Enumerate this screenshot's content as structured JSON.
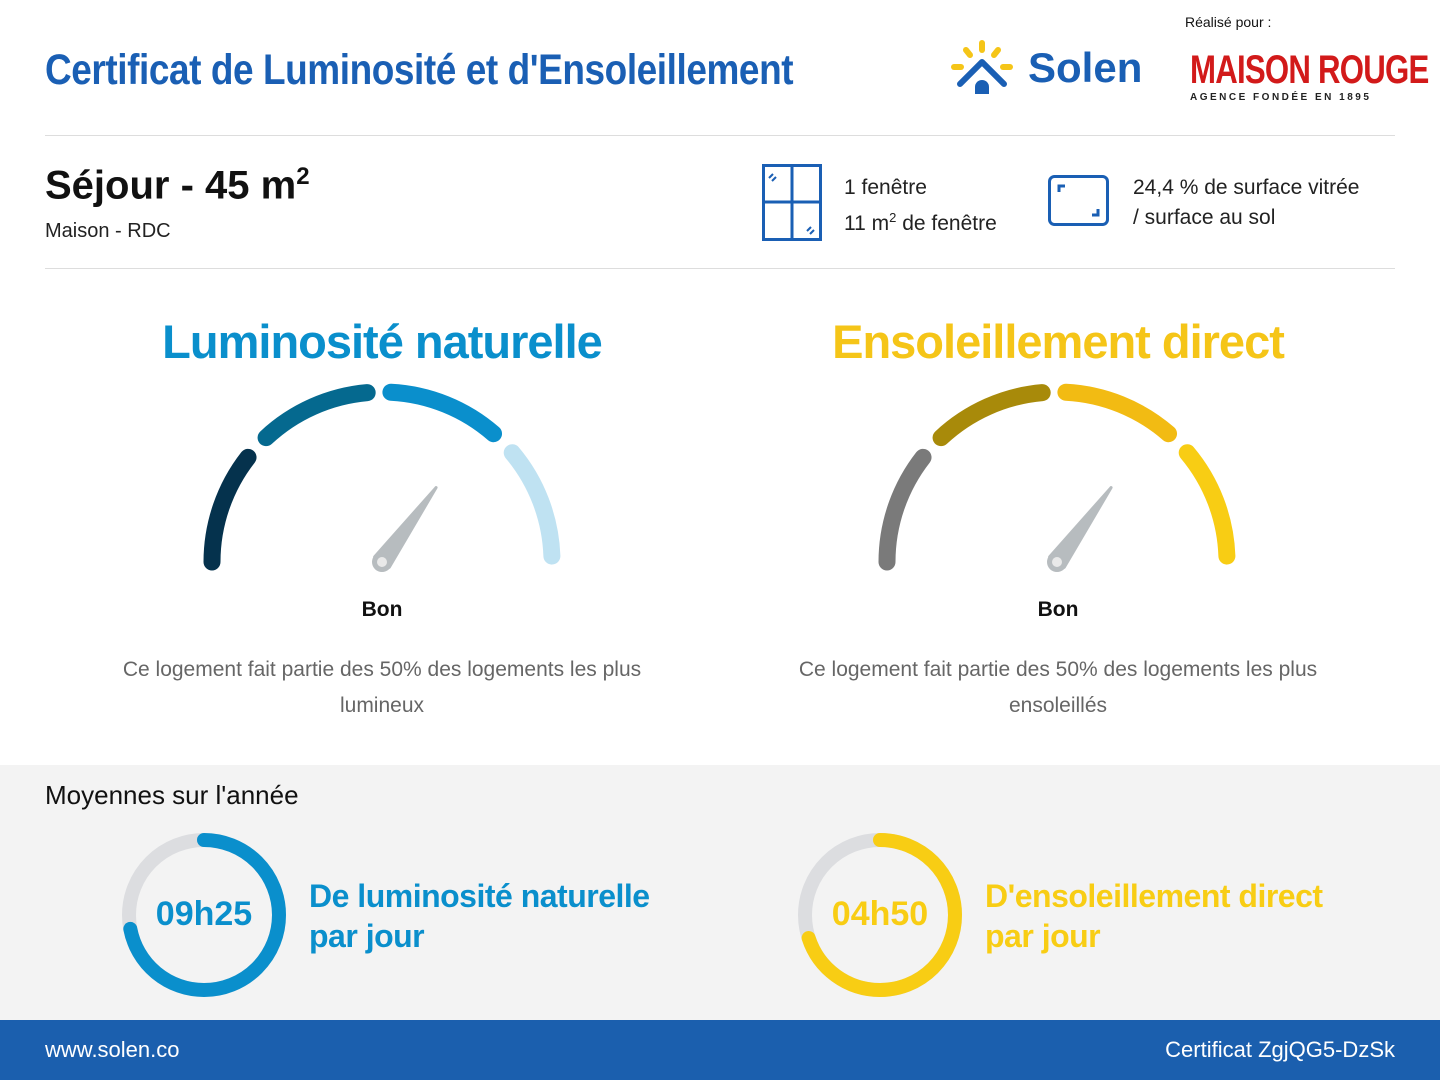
{
  "header": {
    "title": "Certificat de Luminosité et d'Ensoleillement",
    "brand": "Solen",
    "made_for": "Réalisé pour :",
    "client_logo": "MAISON ROUGE",
    "client_tagline": "AGENCE FONDÉE EN 1895"
  },
  "room": {
    "name": "Séjour - 45 m",
    "exp": "2",
    "location": "Maison - RDC"
  },
  "windows": {
    "count": "1 fenêtre",
    "area": "11 m",
    "area_exp": "2",
    "area_suffix": " de fenêtre",
    "icon": "window-icon"
  },
  "glazing": {
    "line1": "24,4 % de surface vitrée",
    "line2": "/ surface au sol",
    "icon": "surface-icon"
  },
  "gauges": [
    {
      "title": "Luminosité naturelle",
      "rating": "Bon",
      "level": 0.7,
      "description": "Ce logement fait partie des 50% des logements les plus lumineux",
      "colors": [
        "#05324d",
        "#05698f",
        "#0a8fcc",
        "#bfe2f2"
      ],
      "title_color": "#0a8fcc"
    },
    {
      "title": "Ensoleillement direct",
      "rating": "Bon",
      "level": 0.7,
      "description": "Ce logement fait partie des 50% des logements les plus ensoleillés",
      "colors": [
        "#7a7a7a",
        "#a88a0a",
        "#f2bb13",
        "#f8cd14"
      ],
      "title_color": "#f5c518"
    }
  ],
  "averages": {
    "title": "Moyennes sur l'année",
    "items": [
      {
        "value": "09h25",
        "label1": "De luminosité naturelle",
        "label2": "par jour",
        "fill": 0.72,
        "color": "#0a8fcc"
      },
      {
        "value": "04h50",
        "label1": "D'ensoleillement direct",
        "label2": "par jour",
        "fill": 0.7,
        "color": "#f8cd14"
      }
    ]
  },
  "footer": {
    "website": "www.solen.co",
    "certificate": "Certificat ZgjQG5-DzSk"
  }
}
